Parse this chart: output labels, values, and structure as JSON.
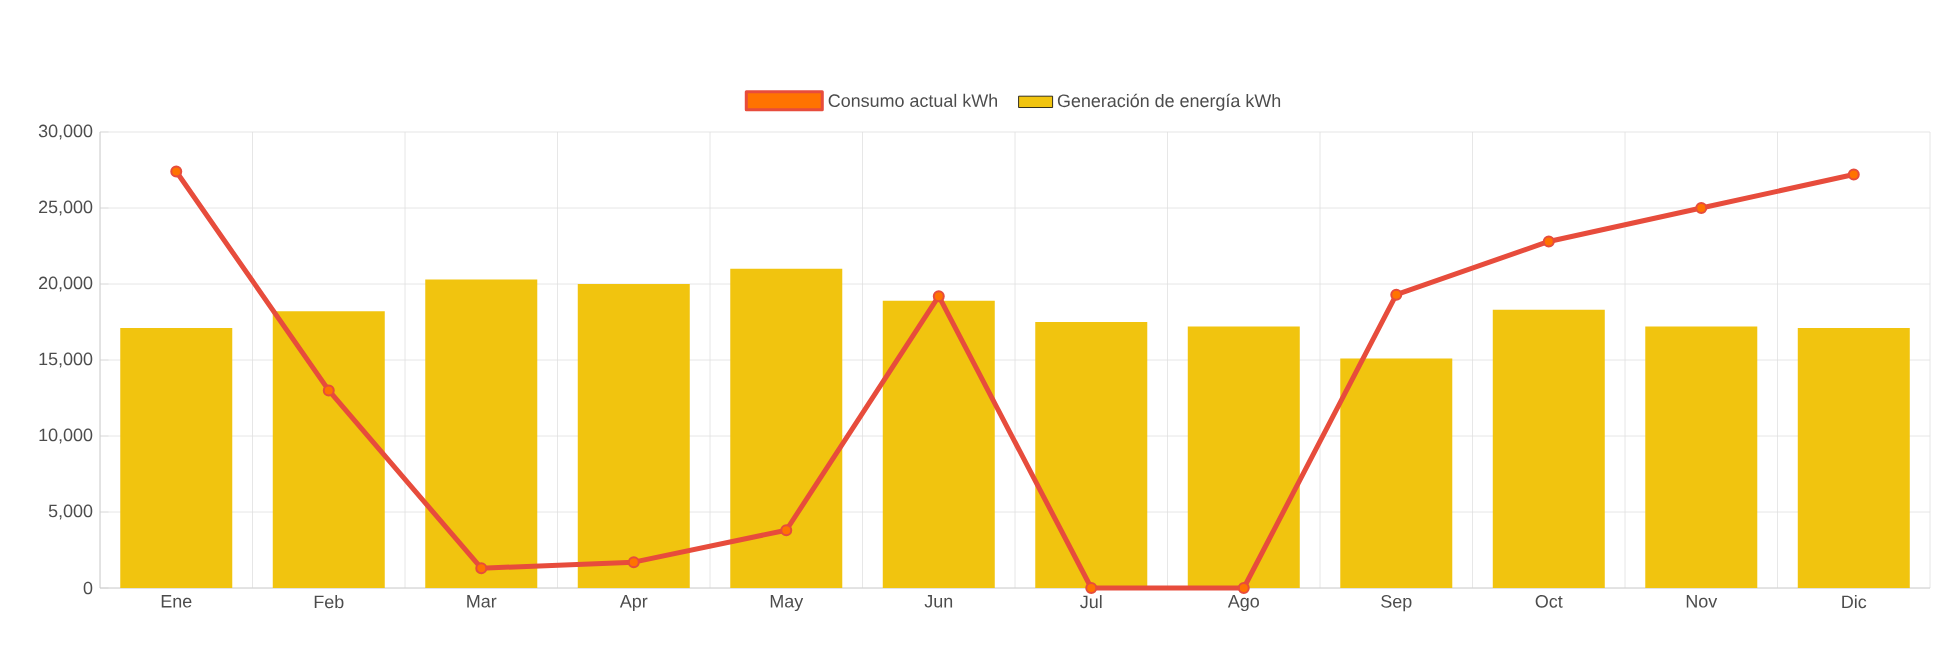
{
  "chart_data": {
    "type": "bar",
    "categories": [
      "Ene",
      "Feb",
      "Mar",
      "Apr",
      "May",
      "Jun",
      "Jul",
      "Ago",
      "Sep",
      "Oct",
      "Nov",
      "Dic"
    ],
    "series": [
      {
        "name": "Consumo actual kWh",
        "type": "line",
        "color": "#e74c3c",
        "marker": "circle",
        "values": [
          27400,
          13000,
          1300,
          1700,
          3800,
          19200,
          0,
          0,
          19300,
          22800,
          25000,
          27200
        ]
      },
      {
        "name": "Generación de energía kWh",
        "color": "#f1c40f",
        "values": [
          17100,
          18200,
          20300,
          20000,
          21000,
          18900,
          17500,
          17200,
          15100,
          18300,
          17200,
          17100
        ]
      }
    ],
    "ylim": [
      0,
      30000
    ],
    "yticks": [
      {
        "value": 0,
        "label": "0"
      },
      {
        "value": 5000,
        "label": "5,000"
      },
      {
        "value": 10000,
        "label": "10,000"
      },
      {
        "value": 15000,
        "label": "15,000"
      },
      {
        "value": 20000,
        "label": "20,000"
      },
      {
        "value": 25000,
        "label": "25,000"
      },
      {
        "value": 30000,
        "label": "30,000"
      }
    ],
    "grid": true,
    "legend": "top"
  }
}
